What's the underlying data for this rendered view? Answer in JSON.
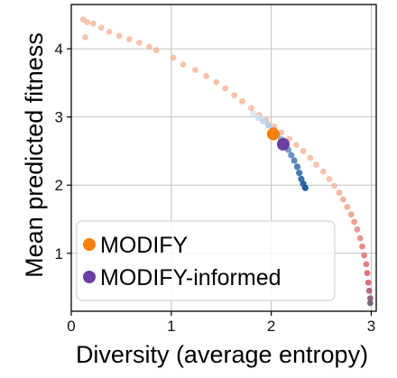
{
  "chart_data": {
    "type": "scatter",
    "xlabel": "Diversity (average entropy)",
    "ylabel": "Mean predicted fitness",
    "xlim": [
      0,
      3.05
    ],
    "ylim": [
      0.15,
      4.65
    ],
    "x_ticks": [
      0,
      1,
      2,
      3
    ],
    "y_ticks": [
      1,
      2,
      3,
      4
    ],
    "grid": true,
    "legend_position": "lower-left",
    "colors": {
      "pareto_warm": "#f2b597",
      "pareto_hot": "#d9606e",
      "pareto_end": "#6e5a78",
      "informed_light": "#dbe8f5",
      "informed_dark": "#1f5fa0",
      "modify": "#f77f0e",
      "modify_informed": "#6a3fa0",
      "grid": "#c0c0c0",
      "axis": "#000000"
    },
    "series": [
      {
        "name": "",
        "kind": "pareto-front",
        "points": [
          [
            0.12,
            4.43
          ],
          [
            0.16,
            4.39
          ],
          [
            0.22,
            4.37
          ],
          [
            0.14,
            4.17
          ],
          [
            0.3,
            4.31
          ],
          [
            0.38,
            4.25
          ],
          [
            0.48,
            4.19
          ],
          [
            0.58,
            4.14
          ],
          [
            0.68,
            4.09
          ],
          [
            0.78,
            4.03
          ],
          [
            0.85,
            3.98
          ],
          [
            1.02,
            3.87
          ],
          [
            1.12,
            3.77
          ],
          [
            1.24,
            3.69
          ],
          [
            1.35,
            3.6
          ],
          [
            1.45,
            3.51
          ],
          [
            1.54,
            3.42
          ],
          [
            1.63,
            3.32
          ],
          [
            1.71,
            3.23
          ],
          [
            1.8,
            3.13
          ],
          [
            1.88,
            3.03
          ],
          [
            1.95,
            2.95
          ],
          [
            2.03,
            2.86
          ],
          [
            2.1,
            2.77
          ],
          [
            2.18,
            2.68
          ],
          [
            2.25,
            2.59
          ],
          [
            2.32,
            2.5
          ],
          [
            2.39,
            2.4
          ],
          [
            2.45,
            2.3
          ],
          [
            2.52,
            2.2
          ],
          [
            2.58,
            2.09
          ],
          [
            2.63,
            1.99
          ],
          [
            2.68,
            1.89
          ],
          [
            2.72,
            1.79
          ],
          [
            2.76,
            1.68
          ],
          [
            2.8,
            1.57
          ],
          [
            2.83,
            1.46
          ],
          [
            2.86,
            1.35
          ],
          [
            2.89,
            1.22
          ],
          [
            2.91,
            1.1
          ],
          [
            2.93,
            0.97
          ],
          [
            2.95,
            0.84
          ],
          [
            2.96,
            0.71
          ],
          [
            2.97,
            0.57
          ],
          [
            2.98,
            0.45
          ],
          [
            2.99,
            0.34
          ],
          [
            2.99,
            0.27
          ]
        ]
      },
      {
        "name": "",
        "kind": "informed-front",
        "points": [
          [
            1.82,
            3.05
          ],
          [
            1.87,
            2.99
          ],
          [
            1.92,
            2.94
          ],
          [
            1.97,
            2.88
          ],
          [
            2.02,
            2.81
          ],
          [
            2.06,
            2.74
          ],
          [
            2.1,
            2.67
          ],
          [
            2.14,
            2.6
          ],
          [
            2.17,
            2.52
          ],
          [
            2.2,
            2.44
          ],
          [
            2.23,
            2.36
          ],
          [
            2.26,
            2.27
          ],
          [
            2.28,
            2.18
          ],
          [
            2.3,
            2.09
          ],
          [
            2.32,
            2.02
          ],
          [
            2.34,
            1.96
          ]
        ]
      },
      {
        "name": "MODIFY",
        "kind": "highlight",
        "points": [
          [
            2.02,
            2.75
          ]
        ]
      },
      {
        "name": "MODIFY-informed",
        "kind": "highlight",
        "points": [
          [
            2.12,
            2.6
          ]
        ]
      }
    ]
  }
}
